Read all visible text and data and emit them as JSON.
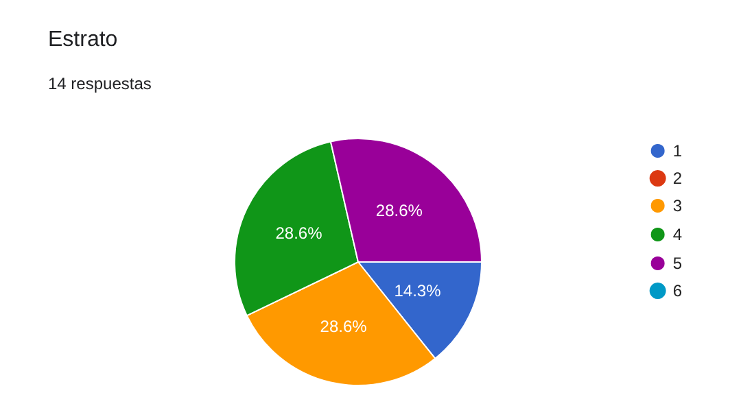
{
  "chart_data": {
    "type": "pie",
    "title": "Estrato",
    "subtitle": "14 respuestas",
    "categories": [
      "1",
      "2",
      "3",
      "4",
      "5",
      "6"
    ],
    "values": [
      14.3,
      0,
      28.6,
      28.6,
      28.6,
      0
    ],
    "value_labels": [
      "14.3%",
      null,
      "28.6%",
      "28.6%",
      "28.6%",
      null
    ],
    "colors": [
      "#3366cc",
      "#dc3912",
      "#ff9900",
      "#109618",
      "#990099",
      "#0099c6"
    ],
    "legend": "right"
  }
}
